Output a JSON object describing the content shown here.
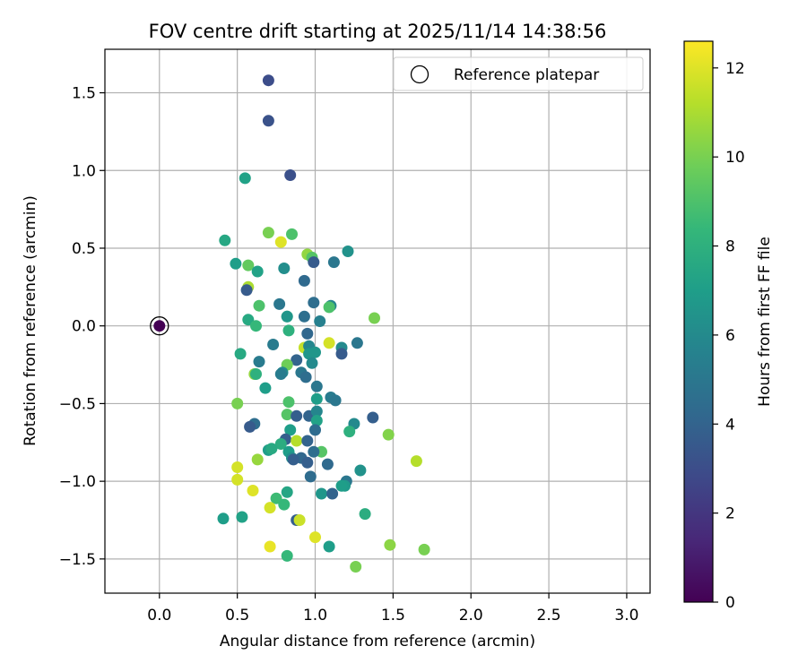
{
  "chart_data": {
    "type": "scatter",
    "title": "FOV centre drift starting at 2025/11/14 14:38:56",
    "xlabel": "Angular distance from reference (arcmin)",
    "ylabel": "Rotation from reference (arcmin)",
    "xlim": [
      -0.35,
      3.15
    ],
    "ylim": [
      -1.72,
      1.78
    ],
    "xticks": [
      0.0,
      0.5,
      1.0,
      1.5,
      2.0,
      2.5,
      3.0
    ],
    "xtick_labels": [
      "0.0",
      "0.5",
      "1.0",
      "1.5",
      "2.0",
      "2.5",
      "3.0"
    ],
    "yticks": [
      -1.5,
      -1.0,
      -0.5,
      0.0,
      0.5,
      1.0,
      1.5
    ],
    "ytick_labels": [
      "−1.5",
      "−1.0",
      "−0.5",
      "0.0",
      "0.5",
      "1.0",
      "1.5"
    ],
    "grid": true,
    "legend": {
      "position": "top-right",
      "entries": [
        "Reference platepar"
      ]
    },
    "reference_point": {
      "x": 0.0,
      "y": 0.0,
      "hours": 0.0
    },
    "colorbar": {
      "label": "Hours from first FF file",
      "colormap": "viridis",
      "range": [
        0,
        12.6
      ],
      "ticks": [
        0,
        2,
        4,
        6,
        8,
        10,
        12
      ],
      "tick_labels": [
        "0",
        "2",
        "4",
        "6",
        "8",
        "10",
        "12"
      ]
    },
    "colormap_stops": [
      "#440154",
      "#482878",
      "#3e4989",
      "#31688e",
      "#26828e",
      "#1f9e89",
      "#35b779",
      "#6ece58",
      "#b5de2b",
      "#fde725"
    ],
    "series": [
      {
        "name": "FOV centre",
        "points": [
          [
            0.7,
            1.58,
            3.0
          ],
          [
            0.7,
            1.32,
            3.2
          ],
          [
            0.84,
            0.97,
            3.1
          ],
          [
            0.55,
            0.95,
            7.2
          ],
          [
            0.42,
            0.55,
            7.5
          ],
          [
            0.7,
            0.6,
            10.0
          ],
          [
            0.78,
            0.54,
            12.0
          ],
          [
            0.85,
            0.59,
            9.0
          ],
          [
            0.95,
            0.46,
            10.5
          ],
          [
            0.98,
            0.44,
            9.2
          ],
          [
            0.99,
            0.41,
            3.6
          ],
          [
            1.21,
            0.48,
            6.4
          ],
          [
            1.12,
            0.41,
            5.0
          ],
          [
            0.49,
            0.4,
            7.0
          ],
          [
            0.57,
            0.39,
            9.5
          ],
          [
            0.63,
            0.35,
            7.2
          ],
          [
            0.8,
            0.37,
            6.2
          ],
          [
            0.93,
            0.29,
            4.3
          ],
          [
            0.57,
            0.25,
            11.0
          ],
          [
            0.56,
            0.23,
            3.6
          ],
          [
            0.77,
            0.14,
            5.0
          ],
          [
            0.99,
            0.15,
            4.5
          ],
          [
            0.64,
            0.13,
            9.0
          ],
          [
            1.1,
            0.13,
            5.8
          ],
          [
            1.09,
            0.12,
            9.0
          ],
          [
            0.57,
            0.04,
            7.6
          ],
          [
            0.82,
            0.06,
            9.0
          ],
          [
            0.82,
            0.06,
            6.6
          ],
          [
            0.93,
            0.06,
            4.6
          ],
          [
            1.03,
            0.03,
            5.5
          ],
          [
            1.38,
            0.05,
            10.0
          ],
          [
            0.62,
            0.0,
            8.4
          ],
          [
            0.83,
            -0.03,
            8.0
          ],
          [
            0.95,
            -0.05,
            4.2
          ],
          [
            0.73,
            -0.12,
            5.2
          ],
          [
            1.09,
            -0.11,
            11.8
          ],
          [
            1.27,
            -0.11,
            5.0
          ],
          [
            0.93,
            -0.14,
            11.5
          ],
          [
            0.96,
            -0.13,
            5.8
          ],
          [
            1.17,
            -0.14,
            6.0
          ],
          [
            1.17,
            -0.18,
            3.6
          ],
          [
            0.52,
            -0.18,
            7.6
          ],
          [
            0.96,
            -0.18,
            6.6
          ],
          [
            1.0,
            -0.17,
            6.6
          ],
          [
            0.64,
            -0.23,
            5.2
          ],
          [
            0.88,
            -0.22,
            4.0
          ],
          [
            0.82,
            -0.25,
            9.8
          ],
          [
            0.98,
            -0.24,
            6.0
          ],
          [
            0.79,
            -0.3,
            6.0
          ],
          [
            0.61,
            -0.31,
            10.5
          ],
          [
            0.62,
            -0.31,
            8.0
          ],
          [
            0.78,
            -0.31,
            5.3
          ],
          [
            0.91,
            -0.3,
            5.0
          ],
          [
            0.94,
            -0.33,
            4.5
          ],
          [
            0.68,
            -0.4,
            7.0
          ],
          [
            1.01,
            -0.39,
            5.0
          ],
          [
            0.5,
            -0.5,
            10.0
          ],
          [
            0.83,
            -0.49,
            9.0
          ],
          [
            1.01,
            -0.47,
            7.0
          ],
          [
            1.1,
            -0.46,
            5.2
          ],
          [
            1.13,
            -0.48,
            5.0
          ],
          [
            0.82,
            -0.57,
            9.2
          ],
          [
            0.88,
            -0.58,
            3.8
          ],
          [
            0.96,
            -0.58,
            4.0
          ],
          [
            1.01,
            -0.55,
            5.8
          ],
          [
            1.01,
            -0.61,
            7.2
          ],
          [
            1.25,
            -0.63,
            6.0
          ],
          [
            1.37,
            -0.59,
            3.8
          ],
          [
            0.61,
            -0.63,
            4.5
          ],
          [
            0.58,
            -0.65,
            3.6
          ],
          [
            0.84,
            -0.67,
            7.0
          ],
          [
            1.0,
            -0.67,
            4.4
          ],
          [
            1.22,
            -0.68,
            8.0
          ],
          [
            1.47,
            -0.7,
            10.2
          ],
          [
            0.81,
            -0.73,
            3.8
          ],
          [
            0.88,
            -0.74,
            11.2
          ],
          [
            0.95,
            -0.74,
            4.0
          ],
          [
            0.78,
            -0.76,
            7.8
          ],
          [
            0.7,
            -0.8,
            7.0
          ],
          [
            0.72,
            -0.79,
            7.6
          ],
          [
            0.83,
            -0.81,
            7.0
          ],
          [
            1.04,
            -0.81,
            9.2
          ],
          [
            0.99,
            -0.81,
            4.5
          ],
          [
            0.85,
            -0.85,
            6.2
          ],
          [
            0.91,
            -0.85,
            4.2
          ],
          [
            0.86,
            -0.86,
            3.8
          ],
          [
            0.95,
            -0.88,
            3.8
          ],
          [
            1.08,
            -0.89,
            4.3
          ],
          [
            0.63,
            -0.86,
            10.6
          ],
          [
            1.29,
            -0.93,
            6.4
          ],
          [
            1.65,
            -0.87,
            11.2
          ],
          [
            0.5,
            -0.91,
            11.8
          ],
          [
            0.97,
            -0.97,
            4.4
          ],
          [
            0.5,
            -0.99,
            11.8
          ],
          [
            1.2,
            -1.0,
            5.0
          ],
          [
            1.19,
            -1.03,
            6.8
          ],
          [
            1.17,
            -1.03,
            7.0
          ],
          [
            0.6,
            -1.06,
            12.0
          ],
          [
            0.82,
            -1.07,
            7.4
          ],
          [
            1.04,
            -1.08,
            6.6
          ],
          [
            1.11,
            -1.08,
            4.0
          ],
          [
            0.75,
            -1.11,
            8.6
          ],
          [
            0.8,
            -1.15,
            8.4
          ],
          [
            0.71,
            -1.17,
            11.8
          ],
          [
            1.32,
            -1.21,
            7.8
          ],
          [
            0.41,
            -1.24,
            7.0
          ],
          [
            0.53,
            -1.23,
            7.2
          ],
          [
            0.88,
            -1.25,
            3.8
          ],
          [
            0.9,
            -1.25,
            11.6
          ],
          [
            1.0,
            -1.36,
            12.0
          ],
          [
            0.71,
            -1.42,
            12.2
          ],
          [
            1.09,
            -1.42,
            7.0
          ],
          [
            1.48,
            -1.41,
            10.4
          ],
          [
            1.7,
            -1.44,
            10.0
          ],
          [
            0.82,
            -1.48,
            8.4
          ],
          [
            1.26,
            -1.55,
            10.0
          ]
        ]
      }
    ]
  }
}
